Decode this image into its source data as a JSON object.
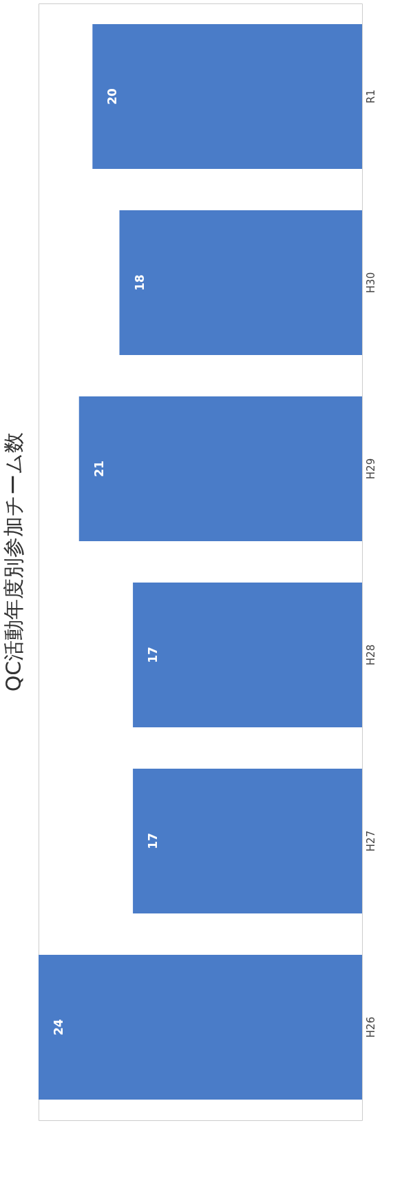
{
  "chart_data": {
    "type": "bar",
    "title": "QC活動年度別参加チーム数",
    "orientation": "horizontal",
    "categories": [
      "R1",
      "H30",
      "H29",
      "H28",
      "H27",
      "H26"
    ],
    "values": [
      20,
      18,
      21,
      17,
      17,
      24
    ],
    "color": "#4a7cc8",
    "data_labels": true
  }
}
